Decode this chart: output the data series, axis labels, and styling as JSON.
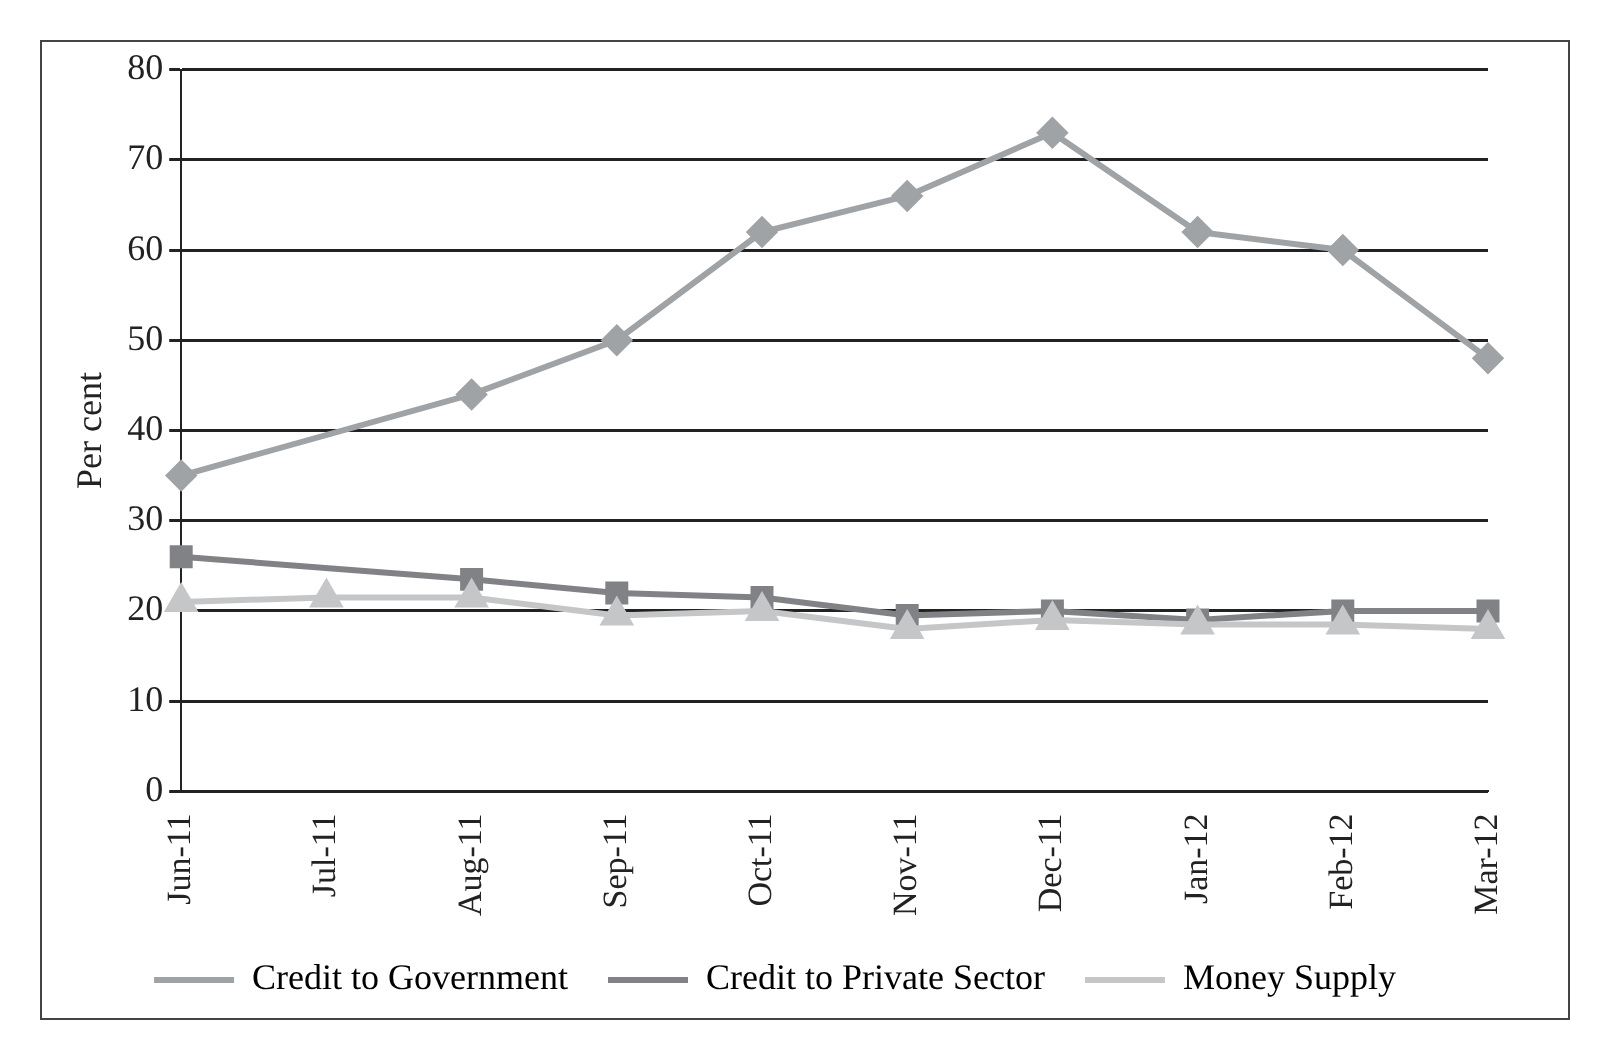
{
  "chart_data": {
    "type": "line",
    "ylabel": "Per cent",
    "categories": [
      "Jun-11",
      "Jul-11",
      "Aug-11",
      "Sep-11",
      "Oct-11",
      "Nov-11",
      "Dec-11",
      "Jan-12",
      "Feb-12",
      "Mar-12"
    ],
    "series": [
      {
        "name": "Credit to Government",
        "color": "#a0a3a6",
        "marker": "diamond",
        "values": [
          35,
          null,
          44,
          50,
          62,
          66,
          73,
          62,
          60,
          48
        ]
      },
      {
        "name": "Credit to Private Sector",
        "color": "#808285",
        "marker": "square",
        "values": [
          26,
          null,
          23.5,
          22,
          21.5,
          19.5,
          20,
          19,
          20,
          20
        ]
      },
      {
        "name": "Money Supply",
        "color": "#c4c6c8",
        "marker": "triangle",
        "values": [
          21,
          21.5,
          21.5,
          19.5,
          20,
          18,
          19,
          18.5,
          18.5,
          18
        ]
      }
    ],
    "ylim": [
      0,
      80
    ],
    "yticks": [
      0,
      10,
      20,
      30,
      40,
      50,
      60,
      70,
      80
    ],
    "grid": "y",
    "legend": "bottom"
  }
}
